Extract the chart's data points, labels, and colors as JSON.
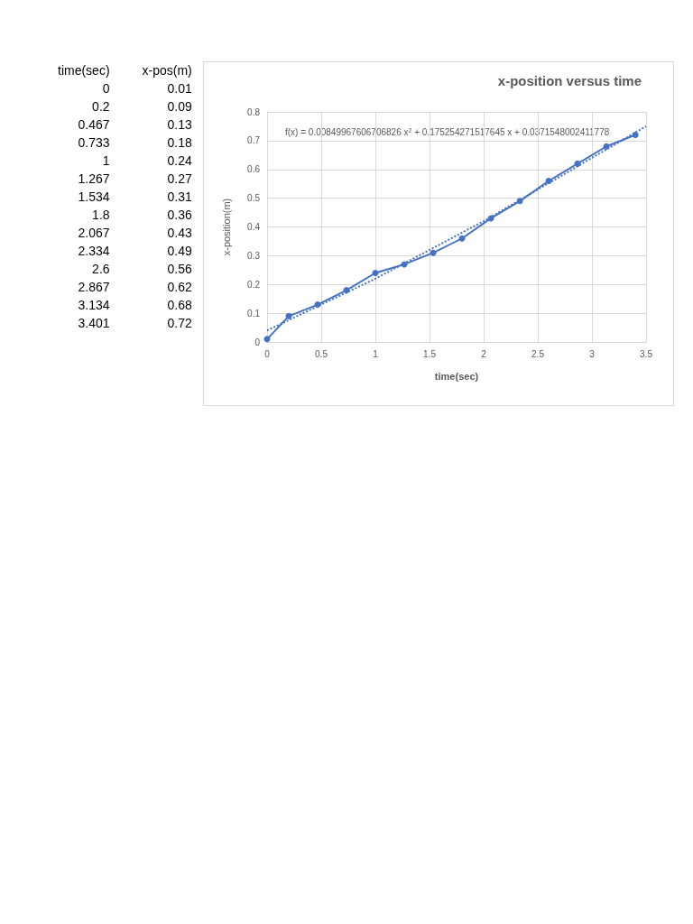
{
  "chart_data": [
    {
      "type": "other",
      "annotations": [
        "time(sec)",
        "x-pos(m)",
        "0",
        "0.01",
        "0.2",
        "0.09",
        "0.467",
        "0.13",
        "0.733",
        "0.18",
        "1",
        "0.24",
        "1.267",
        "0.27",
        "1.534",
        "0.31",
        "1.8",
        "0.36",
        "2.067",
        "0.43",
        "2.334",
        "0.49",
        "2.6",
        "0.56",
        "2.867",
        "0.62",
        "3.134",
        "0.68",
        "3.401",
        "0.72"
      ]
    },
    {
      "type": "line",
      "title": "x-position versus time",
      "xlabel": "time(sec)",
      "ylabel": "x-position(m)",
      "annotations": [
        "f(x) = 0.00849967606706826 x$^{2}$ + 0.175254271517645 x + 0.0371548002411778"
      ],
      "x": [
        0,
        0.2,
        0.467,
        0.733,
        1,
        1.267,
        1.534,
        1.8,
        2.067,
        2.334,
        2.6,
        2.867,
        3.134,
        3.401
      ],
      "series": [
        {
          "color": "#4472c4",
          "values": [
            0.01,
            0.09,
            0.13,
            0.18,
            0.24,
            0.27,
            0.31,
            0.36,
            0.43,
            0.49,
            0.56,
            0.62,
            0.68,
            0.72
          ]
        },
        {
          "type": "line",
          "color": "#4472c4",
          "line_style": "dotted",
          "marker": "none",
          "x": [
            0,
            1,
            2,
            3,
            3.5
          ],
          "values": [
            0.04,
            0.22,
            0.42,
            0.64,
            0.75
          ]
        }
      ],
      "marker": "circle",
      "line_style": "solid",
      "grid": true,
      "xlim": [
        0,
        3.5
      ],
      "xticks": [
        0,
        0.5,
        1,
        1.5,
        2,
        2.5,
        3,
        3.5
      ],
      "ylim": [
        0,
        0.8
      ],
      "yticks": [
        0,
        0.1,
        0.2,
        0.3,
        0.4,
        0.5,
        0.6,
        0.7,
        0.8
      ]
    }
  ]
}
